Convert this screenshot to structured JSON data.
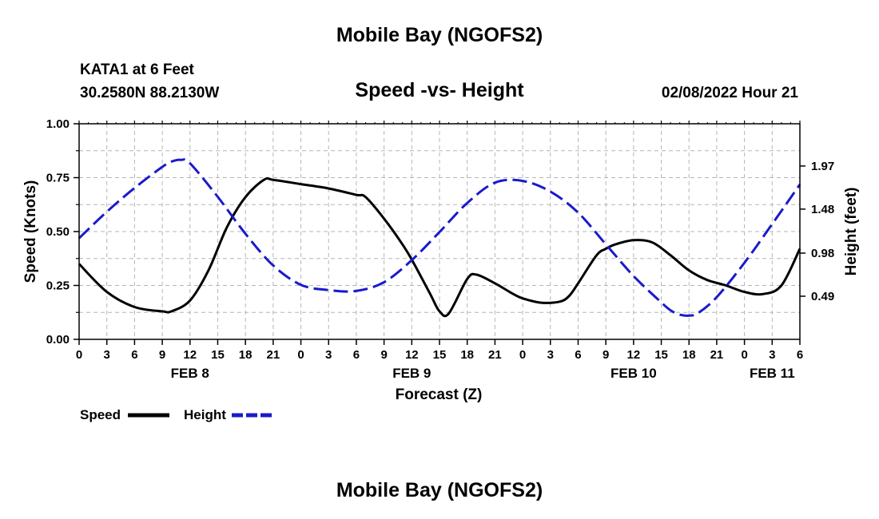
{
  "header": {
    "title": "Mobile Bay (NGOFS2)",
    "station": "KATA1 at 6 Feet",
    "coords": "30.2580N  88.2130W",
    "subtitle": "Speed -vs- Height",
    "datetime": "02/08/2022 Hour 21"
  },
  "footer": {
    "title": "Mobile Bay (NGOFS2)"
  },
  "legend": {
    "speed_label": "Speed",
    "height_label": "Height"
  },
  "colors": {
    "speed": "#000000",
    "height": "#1a1acc",
    "grid": "#b5b5b5"
  },
  "chart_data": {
    "type": "line",
    "title": "Speed -vs- Height",
    "xlabel": "Forecast (Z)",
    "ylabel": "Speed (Knots)",
    "y2label": "Height (feet)",
    "x_unit": "hours since FEB 8 00Z",
    "xlim": [
      0,
      78
    ],
    "ylim": [
      0,
      1.0
    ],
    "y2lim": [
      0,
      2.45
    ],
    "x_ticks": [
      0,
      3,
      6,
      9,
      12,
      15,
      18,
      21,
      24,
      27,
      30,
      33,
      36,
      39,
      42,
      45,
      48,
      51,
      54,
      57,
      60,
      63,
      66,
      69,
      72,
      75,
      78
    ],
    "x_tick_labels": [
      "0",
      "3",
      "6",
      "9",
      "12",
      "15",
      "18",
      "21",
      "0",
      "3",
      "6",
      "9",
      "12",
      "15",
      "18",
      "21",
      "0",
      "3",
      "6",
      "9",
      "12",
      "15",
      "18",
      "21",
      "0",
      "3",
      "6"
    ],
    "date_labels": [
      {
        "x": 12,
        "label": "FEB 8"
      },
      {
        "x": 36,
        "label": "FEB 9"
      },
      {
        "x": 60,
        "label": "FEB 10"
      },
      {
        "x": 75,
        "label": "FEB 11"
      }
    ],
    "y_ticks": [
      0,
      0.25,
      0.5,
      0.75,
      1.0
    ],
    "y_tick_labels": [
      "0.00",
      "0.25",
      "0.50",
      "0.75",
      "1.00"
    ],
    "y2_ticks": [
      0.49,
      0.98,
      1.48,
      1.97
    ],
    "y2_tick_labels": [
      "0.49",
      "0.98",
      "1.48",
      "1.97"
    ],
    "grid": true,
    "series": [
      {
        "name": "Speed",
        "axis": "left",
        "style": "solid",
        "x": [
          0,
          3,
          6,
          9,
          10,
          12,
          14,
          16,
          18,
          20,
          21,
          24,
          27,
          30,
          31,
          33,
          35,
          36,
          38,
          39,
          40,
          42,
          43,
          45,
          47,
          48,
          50,
          52,
          53,
          54,
          56,
          57,
          58,
          60,
          62,
          64,
          66,
          68,
          70,
          72,
          74,
          76,
          78
        ],
        "values": [
          0.35,
          0.22,
          0.15,
          0.13,
          0.13,
          0.18,
          0.32,
          0.52,
          0.66,
          0.74,
          0.74,
          0.72,
          0.7,
          0.67,
          0.66,
          0.56,
          0.44,
          0.37,
          0.21,
          0.13,
          0.12,
          0.28,
          0.3,
          0.26,
          0.21,
          0.19,
          0.17,
          0.175,
          0.2,
          0.26,
          0.39,
          0.42,
          0.44,
          0.46,
          0.45,
          0.39,
          0.32,
          0.275,
          0.25,
          0.22,
          0.21,
          0.25,
          0.42
        ]
      },
      {
        "name": "Height",
        "axis": "right",
        "style": "dashed",
        "x": [
          0,
          3,
          6,
          9,
          10,
          11,
          12,
          15,
          18,
          21,
          24,
          27,
          30,
          33,
          36,
          39,
          42,
          45,
          48,
          51,
          54,
          57,
          60,
          63,
          64,
          65,
          66,
          67,
          69,
          72,
          75,
          78
        ],
        "values": [
          1.15,
          1.45,
          1.72,
          1.96,
          2.02,
          2.04,
          2.0,
          1.62,
          1.2,
          0.84,
          0.62,
          0.56,
          0.55,
          0.65,
          0.9,
          1.22,
          1.55,
          1.78,
          1.8,
          1.68,
          1.44,
          1.08,
          0.72,
          0.42,
          0.33,
          0.28,
          0.27,
          0.3,
          0.48,
          0.87,
          1.31,
          1.76
        ]
      }
    ]
  }
}
